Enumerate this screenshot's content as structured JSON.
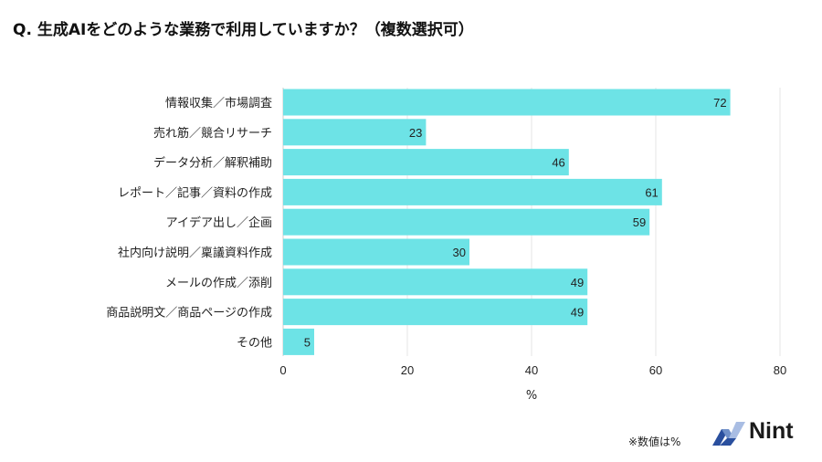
{
  "chart_data": {
    "type": "bar",
    "orientation": "horizontal",
    "title": "Q. 生成AIをどのような業務で利用していますか？（複数選択可）",
    "categories": [
      "情報収集／市場調査",
      "売れ筋／競合リサーチ",
      "データ分析／解釈補助",
      "レポート／記事／資料の作成",
      "アイデア出し／企画",
      "社内向け説明／稟議資料作成",
      "メールの作成／添削",
      "商品説明文／商品ページの作成",
      "その他"
    ],
    "values": [
      72,
      23,
      46,
      61,
      59,
      30,
      49,
      49,
      5
    ],
    "xlabel": "%",
    "xlim": [
      0,
      80
    ],
    "xticks": [
      0,
      20,
      40,
      60,
      80
    ],
    "grid": true,
    "bar_color": "#6de3e6",
    "data_labels": true
  },
  "footer": {
    "note": "※数値は%",
    "logo_text": "Nint"
  }
}
